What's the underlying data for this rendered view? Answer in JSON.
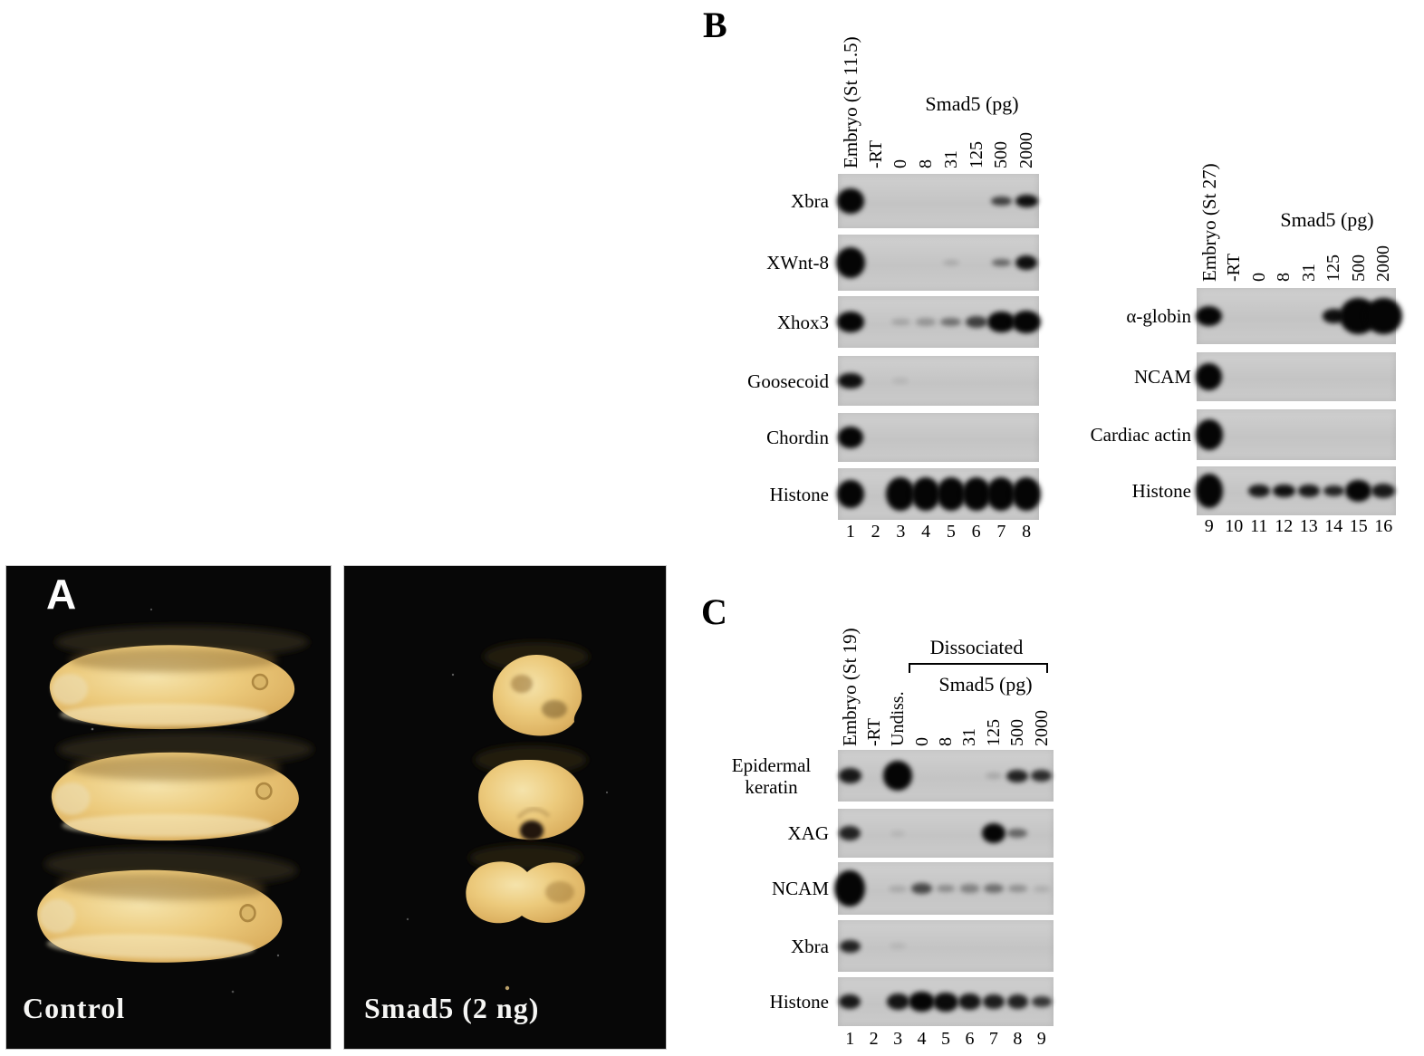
{
  "panel_a": {
    "label": "A",
    "photos": [
      {
        "id": "control",
        "caption": "Control",
        "embryo_count": 3,
        "embryo_shape": "elongated"
      },
      {
        "id": "smad5",
        "caption": "Smad5 (2 ng)",
        "embryo_count": 3,
        "embryo_shape": "rounded"
      }
    ]
  },
  "panel_b": {
    "label": "B"
  },
  "panel_c": {
    "label": "C"
  },
  "gels": [
    {
      "id": "b-left",
      "panel": "B",
      "lane_labels": [
        "Embryo (St 11.5)",
        "-RT",
        "0",
        "8",
        "31",
        "125",
        "500",
        "2000"
      ],
      "dose_header": "Smad5 (pg)",
      "lane_numbers": [
        "1",
        "2",
        "3",
        "4",
        "5",
        "6",
        "7",
        "8"
      ],
      "rows": [
        {
          "label": "Xbra",
          "bands": [
            [
              0,
              1.35,
              2.0,
              1
            ],
            [
              6,
              1.0,
              0.7,
              0.7
            ],
            [
              7,
              1.1,
              0.95,
              0.95
            ]
          ]
        },
        {
          "label": "XWnt-8",
          "bands": [
            [
              0,
              1.4,
              2.4,
              1
            ],
            [
              4,
              0.8,
              0.45,
              0.15
            ],
            [
              6,
              0.95,
              0.55,
              0.5
            ],
            [
              7,
              1.05,
              1.15,
              0.95
            ]
          ]
        },
        {
          "label": "Xhox3",
          "bands": [
            [
              0,
              1.3,
              1.6,
              1
            ],
            [
              2,
              0.95,
              0.55,
              0.18
            ],
            [
              3,
              1.0,
              0.6,
              0.25
            ],
            [
              4,
              1.0,
              0.65,
              0.45
            ],
            [
              5,
              1.05,
              0.9,
              0.7
            ],
            [
              6,
              1.35,
              1.7,
              1
            ],
            [
              7,
              1.4,
              1.8,
              1
            ]
          ]
        },
        {
          "label": "Goosecoid",
          "bands": [
            [
              0,
              1.2,
              1.25,
              0.95
            ],
            [
              2,
              0.8,
              0.5,
              0.08
            ]
          ]
        },
        {
          "label": "Chordin",
          "bands": [
            [
              0,
              1.25,
              1.7,
              1
            ]
          ]
        },
        {
          "label": "Histone",
          "bands": [
            [
              0,
              1.3,
              2.2,
              1
            ],
            [
              2,
              1.4,
              2.7,
              1
            ],
            [
              3,
              1.4,
              2.6,
              1
            ],
            [
              4,
              1.4,
              2.6,
              1
            ],
            [
              5,
              1.4,
              2.6,
              1
            ],
            [
              6,
              1.4,
              2.6,
              1
            ],
            [
              7,
              1.4,
              2.6,
              1
            ]
          ]
        }
      ]
    },
    {
      "id": "b-right",
      "panel": "B",
      "lane_labels": [
        "Embryo (St 27)",
        "-RT",
        "0",
        "8",
        "31",
        "125",
        "500",
        "2000"
      ],
      "dose_header": "Smad5 (pg)",
      "lane_numbers": [
        "9",
        "10",
        "11",
        "12",
        "13",
        "14",
        "15",
        "16"
      ],
      "rows": [
        {
          "label": "α-globin",
          "bands": [
            [
              0,
              1.3,
              1.6,
              1
            ],
            [
              5,
              1.1,
              1.1,
              0.95
            ],
            [
              6,
              1.8,
              2.8,
              1
            ],
            [
              7,
              1.8,
              2.8,
              1
            ]
          ]
        },
        {
          "label": "NCAM",
          "bands": [
            [
              0,
              1.3,
              2.1,
              1
            ]
          ]
        },
        {
          "label": "Cardiac actin",
          "bands": [
            [
              0,
              1.35,
              2.4,
              1
            ]
          ]
        },
        {
          "label": "Histone",
          "bands": [
            [
              0,
              1.35,
              2.7,
              1
            ],
            [
              2,
              1.05,
              0.95,
              0.9
            ],
            [
              3,
              1.1,
              1.05,
              0.95
            ],
            [
              4,
              1.05,
              0.95,
              0.9
            ],
            [
              5,
              1.0,
              0.85,
              0.85
            ],
            [
              6,
              1.3,
              1.7,
              1
            ],
            [
              7,
              1.15,
              1.1,
              0.9
            ]
          ]
        }
      ]
    },
    {
      "id": "c",
      "panel": "C",
      "lane_labels": [
        "Embryo (St 19)",
        "-RT",
        "Undiss.",
        "0",
        "8",
        "31",
        "125",
        "500",
        "2000"
      ],
      "dissociated_header": "Dissociated",
      "dose_header": "Smad5 (pg)",
      "lane_numbers": [
        "1",
        "2",
        "3",
        "4",
        "5",
        "6",
        "7",
        "8",
        "9"
      ],
      "rows": [
        {
          "label": "Epidermal\nkeratin",
          "bands": [
            [
              0,
              1.15,
              1.15,
              0.9
            ],
            [
              2,
              1.5,
              2.3,
              1
            ],
            [
              6,
              0.8,
              0.5,
              0.15
            ],
            [
              7,
              1.1,
              1.0,
              0.85
            ],
            [
              8,
              1.05,
              0.95,
              0.8
            ]
          ]
        },
        {
          "label": "XAG",
          "bands": [
            [
              0,
              1.1,
              1.15,
              0.85
            ],
            [
              2,
              0.75,
              0.5,
              0.08
            ],
            [
              6,
              1.2,
              1.55,
              1
            ],
            [
              7,
              1.0,
              0.75,
              0.5
            ]
          ]
        },
        {
          "label": "NCAM",
          "bands": [
            [
              0,
              1.55,
              2.9,
              1
            ],
            [
              2,
              0.9,
              0.5,
              0.15
            ],
            [
              3,
              1.05,
              0.9,
              0.65
            ],
            [
              4,
              0.95,
              0.6,
              0.3
            ],
            [
              5,
              1.0,
              0.65,
              0.35
            ],
            [
              6,
              1.05,
              0.75,
              0.45
            ],
            [
              7,
              0.95,
              0.6,
              0.28
            ],
            [
              8,
              0.85,
              0.5,
              0.12
            ]
          ]
        },
        {
          "label": "Xbra",
          "bands": [
            [
              0,
              1.05,
              1.0,
              0.85
            ],
            [
              2,
              0.8,
              0.5,
              0.08
            ]
          ]
        },
        {
          "label": "Histone",
          "bands": [
            [
              0,
              1.1,
              1.15,
              0.9
            ],
            [
              2,
              1.15,
              1.25,
              0.92
            ],
            [
              3,
              1.3,
              1.6,
              1
            ],
            [
              4,
              1.25,
              1.5,
              0.97
            ],
            [
              5,
              1.15,
              1.3,
              0.92
            ],
            [
              6,
              1.1,
              1.2,
              0.88
            ],
            [
              7,
              1.05,
              1.1,
              0.85
            ],
            [
              8,
              1.0,
              0.9,
              0.75
            ]
          ]
        }
      ]
    }
  ],
  "colors": {
    "strip_bg": "#c9c9c9",
    "band": "#050505",
    "photo_bg": "#070707",
    "embryo_yellow": "#ecca7c",
    "caption": "#f6f6f4"
  }
}
